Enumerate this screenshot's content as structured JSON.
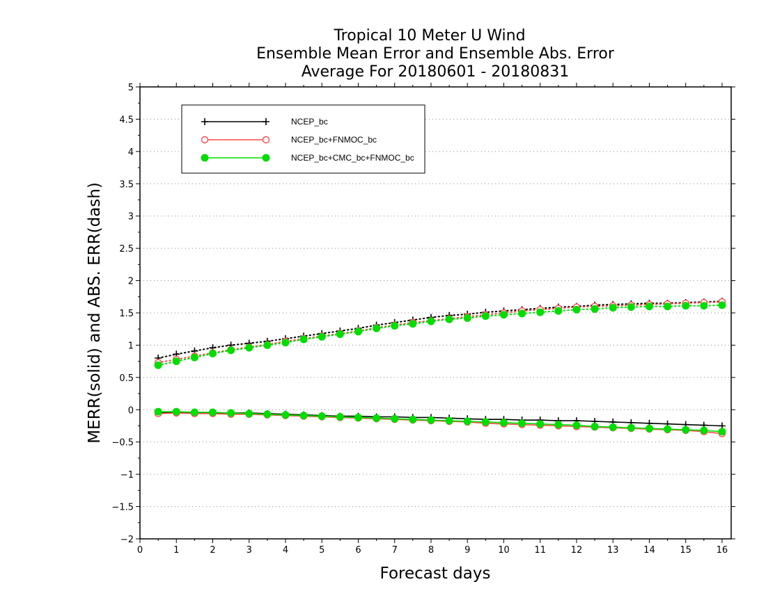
{
  "chart_data": {
    "type": "line",
    "title": [
      "Tropical 10 Meter U Wind",
      "Ensemble Mean Error and Ensemble Abs. Error",
      "Average For 20180601 - 20180831"
    ],
    "xlabel": "Forecast days",
    "ylabel": "MERR(solid) and ABS. ERR(dash)",
    "xlim": [
      0,
      16.25
    ],
    "ylim": [
      -2,
      5
    ],
    "xticks": [
      0,
      1,
      2,
      3,
      4,
      5,
      6,
      7,
      8,
      9,
      10,
      11,
      12,
      13,
      14,
      15,
      16
    ],
    "xtick_labels": [
      "0",
      "1",
      "2",
      "3",
      "4",
      "5",
      "6",
      "7",
      "8",
      "9",
      "10",
      "11",
      "12",
      "13",
      "14",
      "15",
      "16"
    ],
    "yticks": [
      -2,
      -1.5,
      -1,
      -0.5,
      0,
      0.5,
      1,
      1.5,
      2,
      2.5,
      3,
      3.5,
      4,
      4.5,
      5
    ],
    "ytick_labels": [
      "−2",
      "−1.5",
      "−1",
      "−0.5",
      "0",
      "0.5",
      "1",
      "1.5",
      "2",
      "2.5",
      "3",
      "3.5",
      "4",
      "4.5",
      "5"
    ],
    "grid": "horizontal-dotted",
    "legend_position": "top-left",
    "x": [
      0.5,
      1,
      1.5,
      2,
      2.5,
      3,
      3.5,
      4,
      4.5,
      5,
      5.5,
      6,
      6.5,
      7,
      7.5,
      8,
      8.5,
      9,
      9.5,
      10,
      10.5,
      11,
      11.5,
      12,
      12.5,
      13,
      13.5,
      14,
      14.5,
      15,
      15.5,
      16
    ],
    "series": [
      {
        "name": "NCEP_bc",
        "color": "#000000",
        "marker": "plus",
        "merr": [
          -0.05,
          -0.04,
          -0.05,
          -0.05,
          -0.05,
          -0.05,
          -0.06,
          -0.07,
          -0.08,
          -0.09,
          -0.1,
          -0.1,
          -0.11,
          -0.11,
          -0.12,
          -0.12,
          -0.13,
          -0.14,
          -0.15,
          -0.15,
          -0.16,
          -0.16,
          -0.17,
          -0.17,
          -0.18,
          -0.19,
          -0.2,
          -0.21,
          -0.22,
          -0.23,
          -0.24,
          -0.25
        ],
        "abs_err": [
          0.8,
          0.86,
          0.91,
          0.96,
          1.0,
          1.03,
          1.06,
          1.1,
          1.14,
          1.18,
          1.22,
          1.26,
          1.31,
          1.35,
          1.39,
          1.43,
          1.46,
          1.48,
          1.51,
          1.53,
          1.55,
          1.57,
          1.59,
          1.6,
          1.62,
          1.63,
          1.64,
          1.65,
          1.65,
          1.66,
          1.67,
          1.68
        ]
      },
      {
        "name": "NCEP_bc+FNMOC_bc",
        "color": "#ff4a4a",
        "marker": "open-circle",
        "merr": [
          -0.06,
          -0.05,
          -0.06,
          -0.06,
          -0.07,
          -0.07,
          -0.08,
          -0.09,
          -0.1,
          -0.11,
          -0.12,
          -0.13,
          -0.14,
          -0.15,
          -0.16,
          -0.17,
          -0.18,
          -0.19,
          -0.21,
          -0.22,
          -0.23,
          -0.24,
          -0.25,
          -0.26,
          -0.27,
          -0.28,
          -0.29,
          -0.3,
          -0.31,
          -0.32,
          -0.34,
          -0.37
        ],
        "abs_err": [
          0.73,
          0.78,
          0.83,
          0.88,
          0.93,
          0.97,
          1.01,
          1.06,
          1.1,
          1.14,
          1.18,
          1.22,
          1.27,
          1.31,
          1.35,
          1.38,
          1.41,
          1.44,
          1.47,
          1.5,
          1.53,
          1.55,
          1.57,
          1.59,
          1.6,
          1.61,
          1.62,
          1.63,
          1.64,
          1.65,
          1.66,
          1.67
        ]
      },
      {
        "name": "NCEP_bc+CMC_bc+FNMOC_bc",
        "color": "#00dd00",
        "marker": "filled-circle",
        "merr": [
          -0.03,
          -0.03,
          -0.04,
          -0.04,
          -0.05,
          -0.06,
          -0.07,
          -0.08,
          -0.09,
          -0.1,
          -0.11,
          -0.12,
          -0.13,
          -0.14,
          -0.15,
          -0.16,
          -0.17,
          -0.18,
          -0.19,
          -0.2,
          -0.21,
          -0.22,
          -0.23,
          -0.24,
          -0.26,
          -0.27,
          -0.28,
          -0.29,
          -0.3,
          -0.31,
          -0.32,
          -0.34
        ],
        "abs_err": [
          0.69,
          0.75,
          0.81,
          0.87,
          0.92,
          0.96,
          1.0,
          1.04,
          1.09,
          1.13,
          1.17,
          1.21,
          1.26,
          1.3,
          1.33,
          1.37,
          1.4,
          1.42,
          1.45,
          1.47,
          1.49,
          1.51,
          1.53,
          1.55,
          1.56,
          1.58,
          1.59,
          1.6,
          1.6,
          1.61,
          1.61,
          1.62
        ]
      }
    ]
  }
}
